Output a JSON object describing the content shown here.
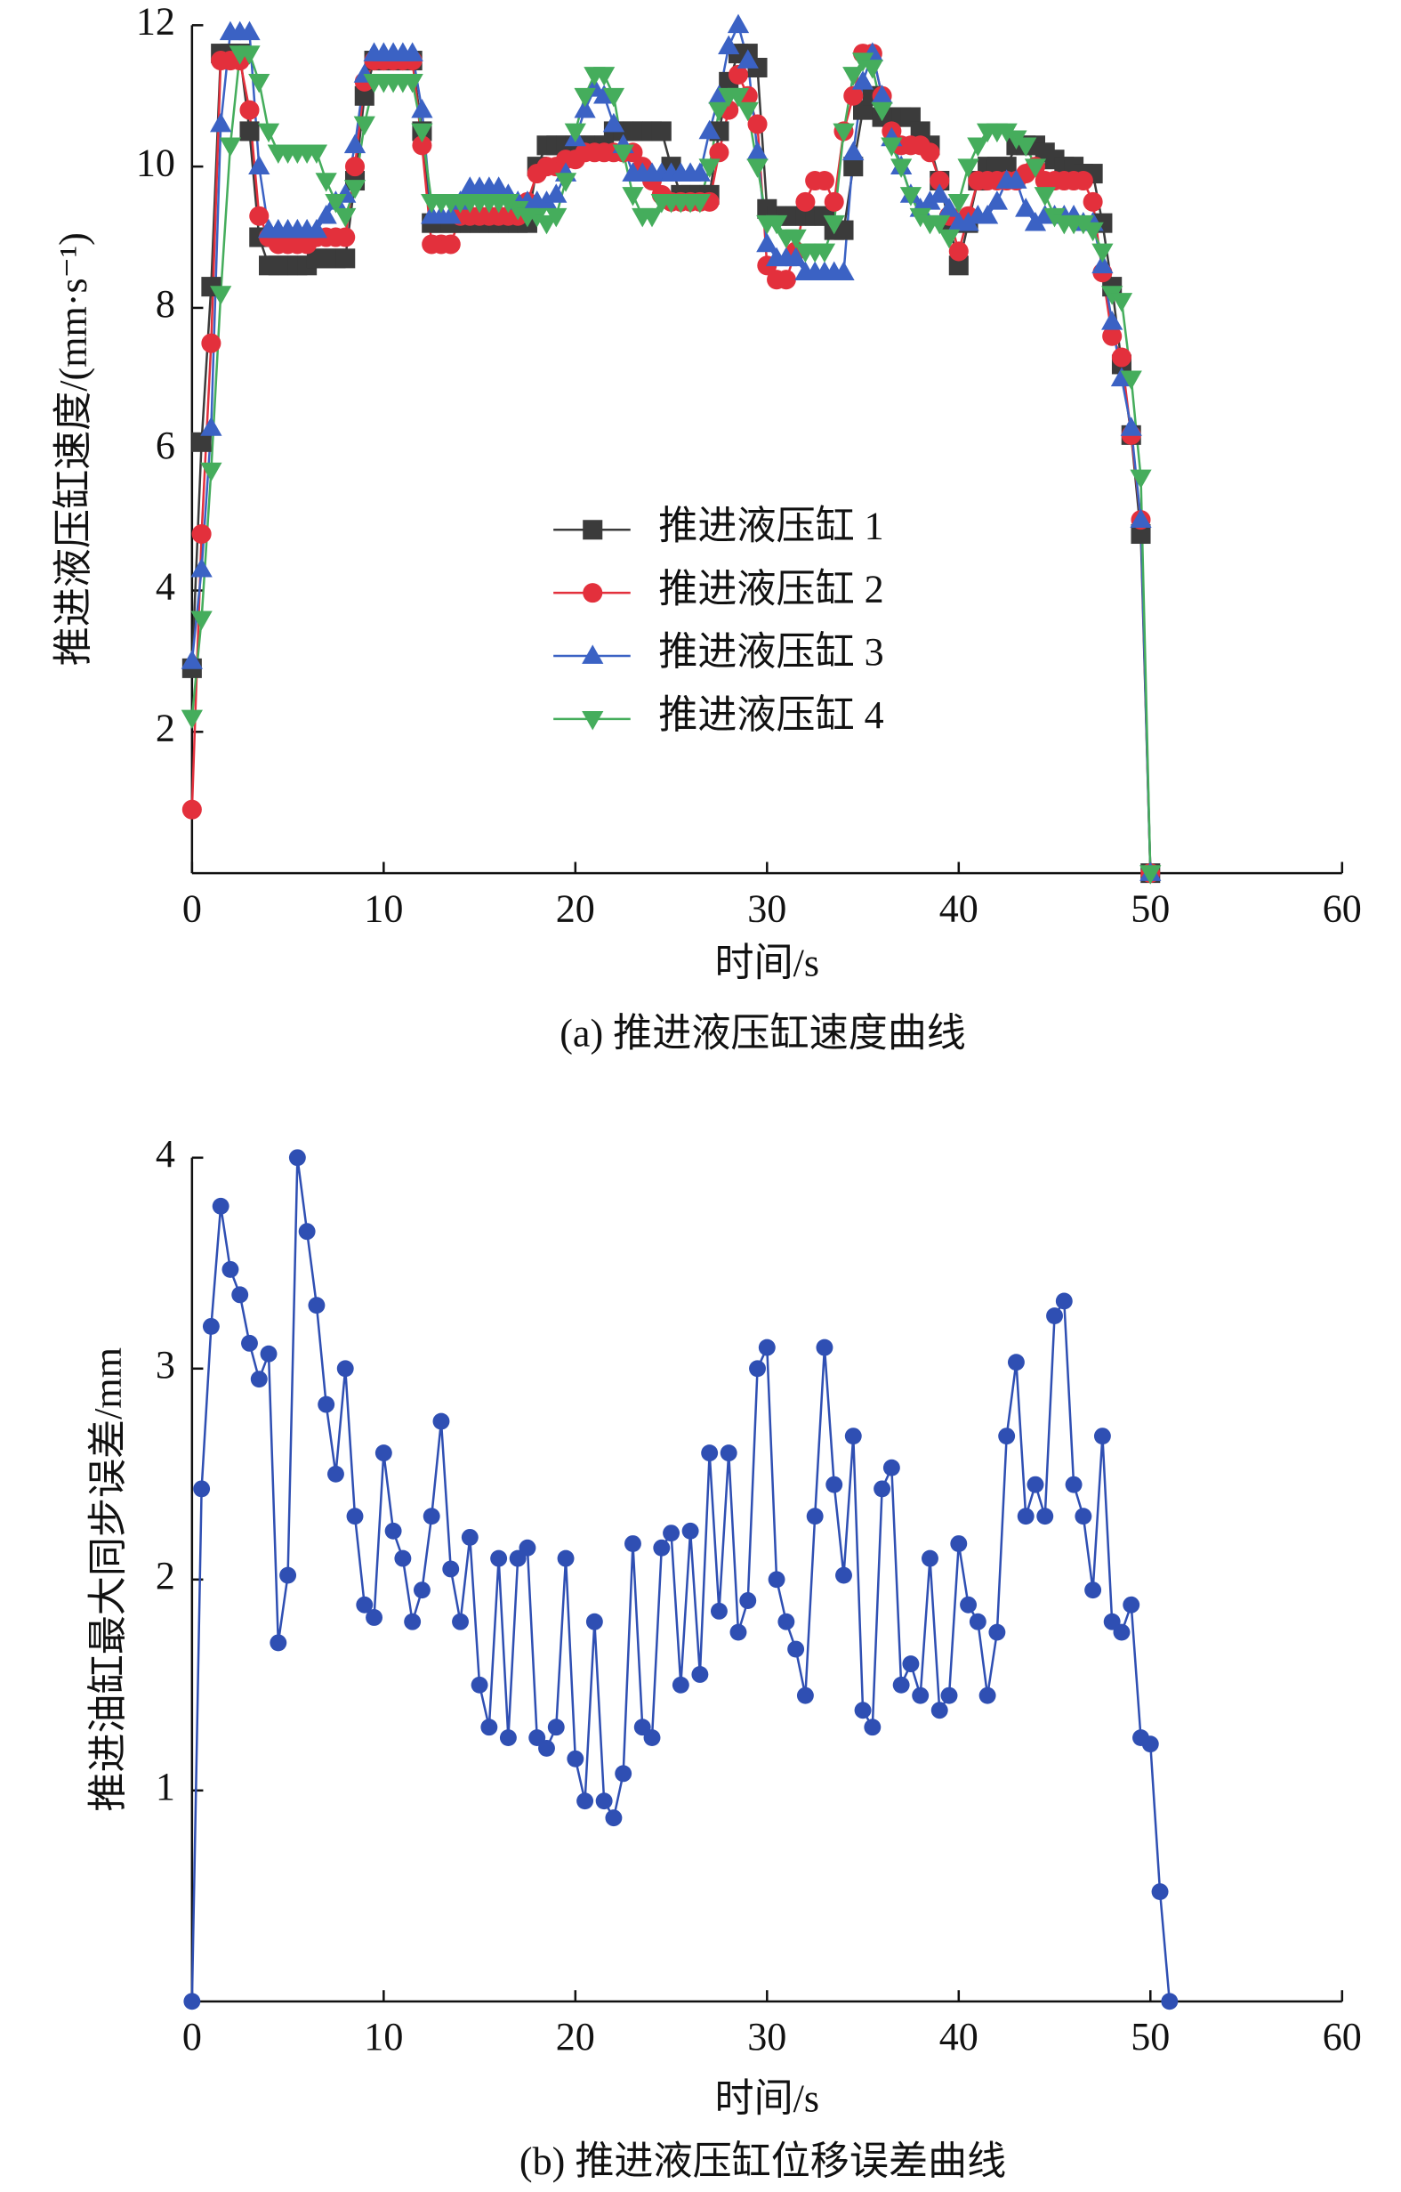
{
  "chart_data": [
    {
      "type": "line",
      "title": "(a) 推进液压缸速度曲线",
      "x_label": "时间/s",
      "y_label": "推进液压缸速度/(mm·s⁻¹)",
      "xlim": [
        0,
        60
      ],
      "ylim": [
        0,
        12
      ],
      "xticks": [
        0,
        10,
        20,
        30,
        40,
        50,
        60
      ],
      "yticks": [
        2,
        4,
        6,
        8,
        10,
        12
      ],
      "legend": "center",
      "x": [
        0,
        0.5,
        1,
        1.5,
        2,
        2.5,
        3,
        3.5,
        4,
        4.5,
        5,
        5.5,
        6,
        6.5,
        7,
        7.5,
        8,
        8.5,
        9,
        9.5,
        10,
        10.5,
        11,
        11.5,
        12,
        12.5,
        13,
        13.5,
        14,
        14.5,
        15,
        15.5,
        16,
        16.5,
        17,
        17.5,
        18,
        18.5,
        19,
        19.5,
        20,
        20.5,
        21,
        21.5,
        22,
        22.5,
        23,
        23.5,
        24,
        24.5,
        25,
        25.5,
        26,
        26.5,
        27,
        27.5,
        28,
        28.5,
        29,
        29.5,
        30,
        30.5,
        31,
        31.5,
        32,
        32.5,
        33,
        33.5,
        34,
        34.5,
        35,
        35.5,
        36,
        36.5,
        37,
        37.5,
        38,
        38.5,
        39,
        39.5,
        40,
        40.5,
        41,
        41.5,
        42,
        42.5,
        43,
        43.5,
        44,
        44.5,
        45,
        45.5,
        46,
        46.5,
        47,
        47.5,
        48,
        48.5,
        49,
        49.5,
        50
      ],
      "series": [
        {
          "name": "推进液压缸 1",
          "color": "#3b3b3b",
          "marker": "square",
          "values": [
            2.9,
            6.1,
            8.3,
            11.6,
            11.6,
            11.6,
            10.5,
            9.0,
            8.6,
            8.6,
            8.6,
            8.6,
            8.6,
            8.7,
            8.7,
            8.7,
            8.7,
            9.8,
            11.0,
            11.5,
            11.5,
            11.5,
            11.5,
            11.5,
            10.5,
            9.2,
            9.2,
            9.2,
            9.2,
            9.2,
            9.2,
            9.2,
            9.2,
            9.2,
            9.2,
            9.2,
            10.0,
            10.3,
            10.3,
            10.3,
            10.3,
            10.3,
            10.3,
            10.3,
            10.5,
            10.5,
            10.5,
            10.5,
            10.5,
            10.5,
            10.0,
            9.6,
            9.6,
            9.6,
            9.6,
            10.5,
            11.2,
            11.6,
            11.6,
            11.4,
            9.4,
            9.3,
            9.3,
            9.3,
            9.3,
            9.3,
            9.3,
            9.1,
            9.1,
            10.0,
            10.8,
            11.0,
            10.7,
            10.7,
            10.7,
            10.7,
            10.5,
            10.3,
            9.8,
            9.2,
            8.6,
            9.2,
            9.8,
            10.0,
            10.0,
            10.0,
            10.3,
            10.3,
            10.3,
            10.2,
            10.1,
            10.0,
            10.0,
            9.9,
            9.9,
            9.2,
            8.3,
            7.2,
            6.2,
            4.8,
            0
          ]
        },
        {
          "name": "推进液压缸 2",
          "color": "#e3303c",
          "marker": "circle",
          "values": [
            0.9,
            4.8,
            7.5,
            11.5,
            11.5,
            11.5,
            10.8,
            9.3,
            9.0,
            8.9,
            8.9,
            8.9,
            8.9,
            9.0,
            9.0,
            9.0,
            9.0,
            10.0,
            11.2,
            11.5,
            11.5,
            11.5,
            11.5,
            11.5,
            10.3,
            8.9,
            8.9,
            8.9,
            9.3,
            9.3,
            9.3,
            9.3,
            9.3,
            9.3,
            9.3,
            9.5,
            9.9,
            10.0,
            10.0,
            10.1,
            10.1,
            10.2,
            10.2,
            10.2,
            10.2,
            10.2,
            10.2,
            10.0,
            9.8,
            9.6,
            9.5,
            9.5,
            9.5,
            9.5,
            9.5,
            10.2,
            10.8,
            11.3,
            11.0,
            10.6,
            8.6,
            8.4,
            8.4,
            8.8,
            9.5,
            9.8,
            9.8,
            9.5,
            10.5,
            11.0,
            11.6,
            11.6,
            11.0,
            10.5,
            10.3,
            10.3,
            10.3,
            10.2,
            9.8,
            9.3,
            8.8,
            9.3,
            9.8,
            9.8,
            9.8,
            9.8,
            9.8,
            9.9,
            10.0,
            9.8,
            9.8,
            9.8,
            9.8,
            9.8,
            9.5,
            8.5,
            7.6,
            7.3,
            6.2,
            5.0,
            0
          ]
        },
        {
          "name": "推进液压缸 3",
          "color": "#3b62c4",
          "marker": "triangle-up",
          "values": [
            3.0,
            4.3,
            6.3,
            10.6,
            11.9,
            11.9,
            11.9,
            10.0,
            9.1,
            9.1,
            9.1,
            9.1,
            9.1,
            9.1,
            9.3,
            9.5,
            9.6,
            10.3,
            11.3,
            11.6,
            11.6,
            11.6,
            11.6,
            11.6,
            10.8,
            9.3,
            9.3,
            9.3,
            9.5,
            9.7,
            9.7,
            9.7,
            9.7,
            9.6,
            9.5,
            9.5,
            9.5,
            9.5,
            9.6,
            9.9,
            10.4,
            10.8,
            11.1,
            11.0,
            10.6,
            10.3,
            9.9,
            9.9,
            9.9,
            9.9,
            9.9,
            9.9,
            9.9,
            9.9,
            10.5,
            11.0,
            11.7,
            12.0,
            11.5,
            10.2,
            8.9,
            8.7,
            8.7,
            8.7,
            8.5,
            8.5,
            8.5,
            8.5,
            8.5,
            10.2,
            11.2,
            11.6,
            11.0,
            10.4,
            10.0,
            9.6,
            9.4,
            9.5,
            9.6,
            9.4,
            9.2,
            9.2,
            9.3,
            9.3,
            9.5,
            9.8,
            9.8,
            9.4,
            9.2,
            9.3,
            9.3,
            9.3,
            9.3,
            9.2,
            9.2,
            8.6,
            7.8,
            7.0,
            6.3,
            5.0,
            0
          ]
        },
        {
          "name": "推进液压缸 4",
          "color": "#45ad5c",
          "marker": "triangle-down",
          "values": [
            2.2,
            3.6,
            5.7,
            8.2,
            10.3,
            11.6,
            11.6,
            11.2,
            10.5,
            10.2,
            10.2,
            10.2,
            10.2,
            10.2,
            9.8,
            9.5,
            9.3,
            9.7,
            10.6,
            11.2,
            11.2,
            11.2,
            11.2,
            11.2,
            10.5,
            9.5,
            9.5,
            9.5,
            9.5,
            9.5,
            9.5,
            9.5,
            9.5,
            9.5,
            9.4,
            9.3,
            9.3,
            9.2,
            9.3,
            9.8,
            10.5,
            11.0,
            11.3,
            11.3,
            11.0,
            10.2,
            9.6,
            9.3,
            9.3,
            9.5,
            9.5,
            9.5,
            9.5,
            9.5,
            10.0,
            10.8,
            11.0,
            11.0,
            10.8,
            10.0,
            9.2,
            9.2,
            9.0,
            9.0,
            8.8,
            8.8,
            8.8,
            9.2,
            10.5,
            11.3,
            11.5,
            11.4,
            10.8,
            10.3,
            10.0,
            9.6,
            9.3,
            9.2,
            9.2,
            9.0,
            9.5,
            10.0,
            10.3,
            10.5,
            10.5,
            10.5,
            10.4,
            10.3,
            10.0,
            9.6,
            9.3,
            9.2,
            9.2,
            9.2,
            9.1,
            8.8,
            8.2,
            8.1,
            7.0,
            5.6,
            0
          ]
        }
      ]
    },
    {
      "type": "line",
      "title": "(b) 推进液压缸位移误差曲线",
      "x_label": "时间/s",
      "y_label": "推进油缸最大同步误差/mm",
      "xlim": [
        0,
        60
      ],
      "ylim": [
        0,
        4
      ],
      "xticks": [
        0,
        10,
        20,
        30,
        40,
        50,
        60
      ],
      "yticks": [
        1,
        2,
        3,
        4
      ],
      "x": [
        0,
        0.5,
        1,
        1.5,
        2,
        2.5,
        3,
        3.5,
        4,
        4.5,
        5,
        5.5,
        6,
        6.5,
        7,
        7.5,
        8,
        8.5,
        9,
        9.5,
        10,
        10.5,
        11,
        11.5,
        12,
        12.5,
        13,
        13.5,
        14,
        14.5,
        15,
        15.5,
        16,
        16.5,
        17,
        17.5,
        18,
        18.5,
        19,
        19.5,
        20,
        20.5,
        21,
        21.5,
        22,
        22.5,
        23,
        23.5,
        24,
        24.5,
        25,
        25.5,
        26,
        26.5,
        27,
        27.5,
        28,
        28.5,
        29,
        29.5,
        30,
        30.5,
        31,
        31.5,
        32,
        32.5,
        33,
        33.5,
        34,
        34.5,
        35,
        35.5,
        36,
        36.5,
        37,
        37.5,
        38,
        38.5,
        39,
        39.5,
        40,
        40.5,
        41,
        41.5,
        42,
        42.5,
        43,
        43.5,
        44,
        44.5,
        45,
        45.5,
        46,
        46.5,
        47,
        47.5,
        48,
        48.5,
        49,
        49.5,
        50,
        50.5,
        51
      ],
      "series": [
        {
          "color": "#2f4fb3",
          "marker": "circle",
          "values": [
            0,
            2.43,
            3.2,
            3.77,
            3.47,
            3.35,
            3.12,
            2.95,
            3.07,
            1.7,
            2.02,
            4.0,
            3.65,
            3.3,
            2.83,
            2.5,
            3.0,
            2.3,
            1.88,
            1.82,
            2.6,
            2.23,
            2.1,
            1.8,
            1.95,
            2.3,
            2.75,
            2.05,
            1.8,
            2.2,
            1.5,
            1.3,
            2.1,
            1.25,
            2.1,
            2.15,
            1.25,
            1.2,
            1.3,
            2.1,
            1.15,
            0.95,
            1.8,
            0.95,
            0.87,
            1.08,
            2.17,
            1.3,
            1.25,
            2.15,
            2.22,
            1.5,
            2.23,
            1.55,
            2.6,
            1.85,
            2.6,
            1.75,
            1.9,
            3.0,
            3.1,
            2.0,
            1.8,
            1.67,
            1.45,
            2.3,
            3.1,
            2.45,
            2.02,
            2.68,
            1.38,
            1.3,
            2.43,
            2.53,
            1.5,
            1.6,
            1.45,
            2.1,
            1.38,
            1.45,
            2.17,
            1.88,
            1.8,
            1.45,
            1.75,
            2.68,
            3.03,
            2.3,
            2.45,
            2.3,
            3.25,
            3.32,
            2.45,
            2.3,
            1.95,
            2.68,
            1.8,
            1.75,
            1.88,
            1.25,
            1.22,
            0.52,
            0
          ]
        }
      ]
    }
  ]
}
